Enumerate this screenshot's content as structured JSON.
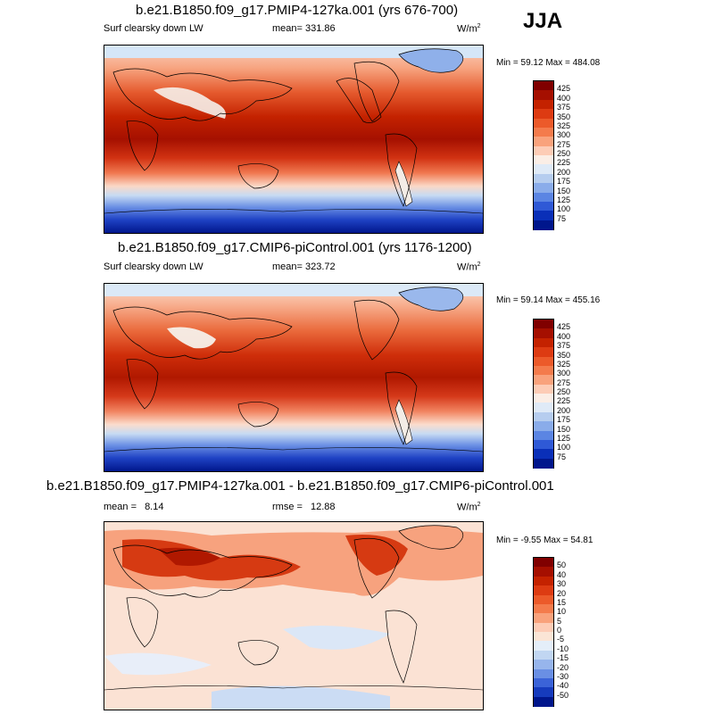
{
  "season": "JJA",
  "panels": [
    {
      "title": "b.e21.B1850.f09_g17.PMIP4-127ka.001 (yrs 676-700)",
      "variable": "Surf clearsky down LW",
      "mean_label": "mean=",
      "mean": "331.86",
      "units": "W/m",
      "units_exp": "2",
      "min_max": "Min =  59.12 Max = 484.08",
      "colorbar_labels": [
        "425",
        "400",
        "375",
        "350",
        "325",
        "300",
        "275",
        "250",
        "225",
        "200",
        "175",
        "150",
        "125",
        "100",
        "75"
      ]
    },
    {
      "title": "b.e21.B1850.f09_g17.CMIP6-piControl.001 (yrs 1176-1200)",
      "variable": "Surf clearsky down LW",
      "mean_label": "mean=",
      "mean": "323.72",
      "units": "W/m",
      "units_exp": "2",
      "min_max": "Min =  59.14 Max = 455.16",
      "colorbar_labels": [
        "425",
        "400",
        "375",
        "350",
        "325",
        "300",
        "275",
        "250",
        "225",
        "200",
        "175",
        "150",
        "125",
        "100",
        "75"
      ]
    },
    {
      "title": "b.e21.B1850.f09_g17.PMIP4-127ka.001 - b.e21.B1850.f09_g17.CMIP6-piControl.001",
      "mean_label": "mean =",
      "mean": "8.14",
      "rmse_label": "rmse =",
      "rmse": "12.88",
      "units": "W/m",
      "units_exp": "2",
      "min_max": "Min =  -9.55 Max =  54.81",
      "colorbar_labels": [
        "50",
        "40",
        "30",
        "20",
        "15",
        "10",
        "5",
        "0",
        "-5",
        "-10",
        "-15",
        "-20",
        "-30",
        "-40",
        "-50"
      ]
    }
  ],
  "colors": {
    "abs_scale": [
      "#800000",
      "#a50f00",
      "#c42200",
      "#dd3b12",
      "#ec5a2a",
      "#f47b4c",
      "#f9a27c",
      "#fdccb6",
      "#fbeee6",
      "#dfeaf7",
      "#b6cdef",
      "#8aacea",
      "#5b85e3",
      "#2f59d6",
      "#0a2fb8",
      "#00168c"
    ],
    "diff_scale": [
      "#800000",
      "#a50f00",
      "#c42200",
      "#dd3b12",
      "#ec5a2a",
      "#f47b4c",
      "#f9a27c",
      "#fdccb6",
      "#fbe5d6",
      "#e4eef9",
      "#c1d6f2",
      "#97b5ec",
      "#6a8fe4",
      "#3b63d8",
      "#163bbd",
      "#00168c"
    ]
  }
}
